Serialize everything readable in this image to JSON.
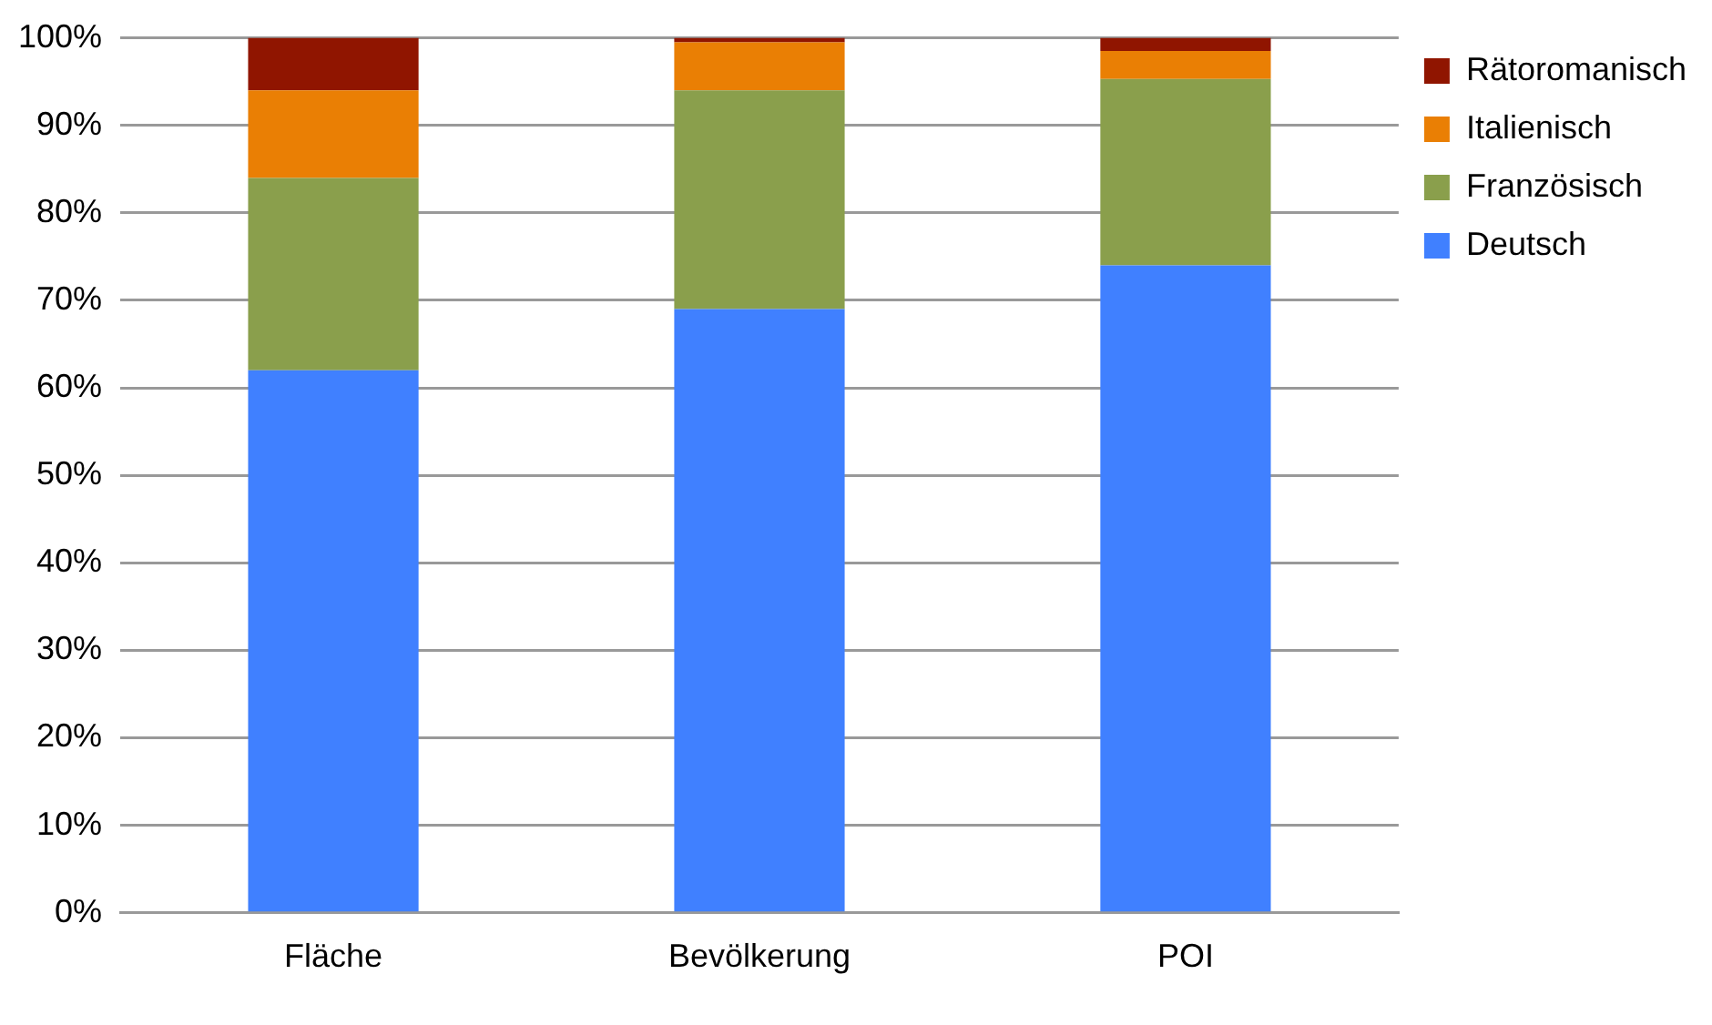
{
  "chart_data": {
    "type": "bar",
    "stacked": true,
    "categories": [
      "Fläche",
      "Bevölkerung",
      "POI"
    ],
    "series": [
      {
        "name": "Deutsch",
        "color": "#4080ff",
        "values": [
          62,
          69,
          74
        ]
      },
      {
        "name": "Französisch",
        "color": "#8a9f4c",
        "values": [
          22,
          25,
          21.3
        ]
      },
      {
        "name": "Italienisch",
        "color": "#ea7f04",
        "values": [
          10,
          5.5,
          3.2
        ]
      },
      {
        "name": "Rätoromanisch",
        "color": "#901500",
        "values": [
          6,
          0.5,
          1.5
        ]
      }
    ],
    "ylim": [
      0,
      100
    ],
    "yticks": [
      {
        "value": 0,
        "label": "0%"
      },
      {
        "value": 10,
        "label": "10%"
      },
      {
        "value": 20,
        "label": "20%"
      },
      {
        "value": 30,
        "label": "30%"
      },
      {
        "value": 40,
        "label": "40%"
      },
      {
        "value": 50,
        "label": "50%"
      },
      {
        "value": 60,
        "label": "60%"
      },
      {
        "value": 70,
        "label": "70%"
      },
      {
        "value": 80,
        "label": "80%"
      },
      {
        "value": 90,
        "label": "90%"
      },
      {
        "value": 100,
        "label": "100%"
      }
    ],
    "grid": "y",
    "legend": "top right"
  }
}
